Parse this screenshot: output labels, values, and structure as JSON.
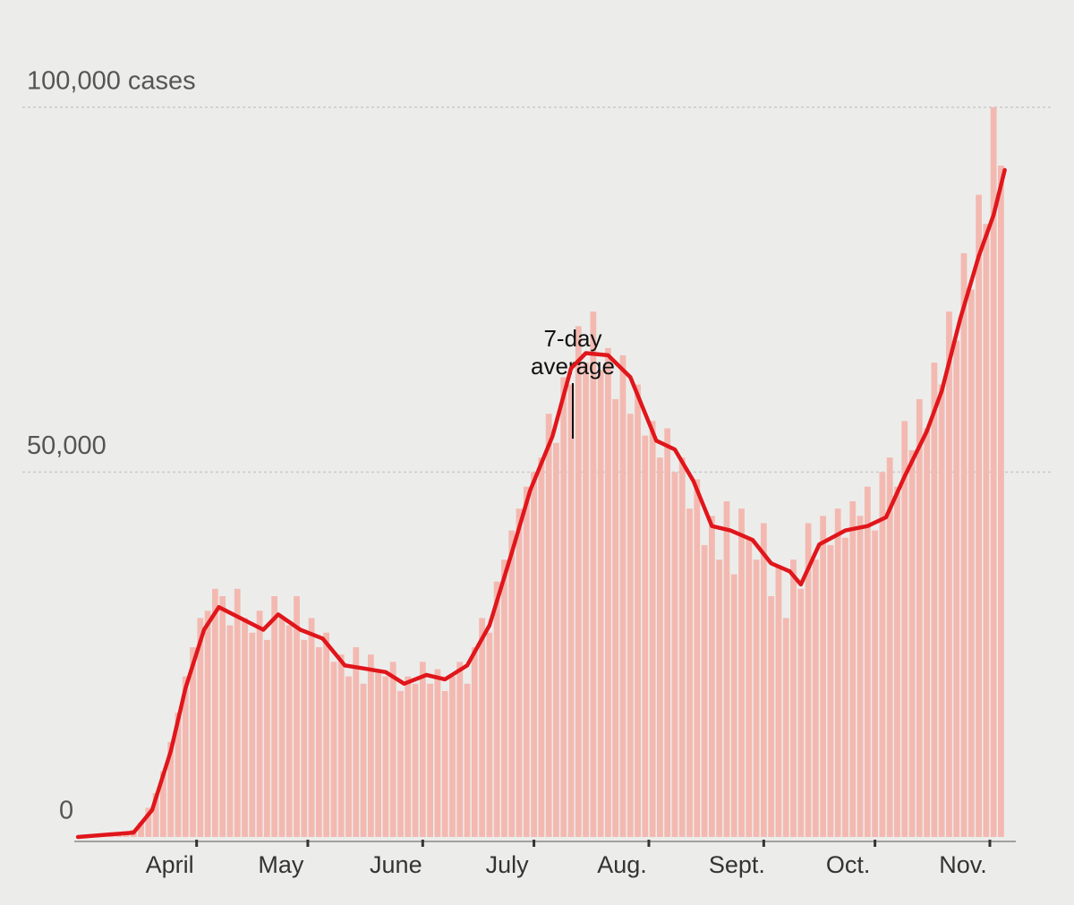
{
  "chart_data": {
    "type": "bar-line",
    "annotation": [
      "7-day",
      "average"
    ],
    "xlim": [
      58,
      312
    ],
    "xticks": [
      {
        "value": 91,
        "label": "April"
      },
      {
        "value": 121,
        "label": "May"
      },
      {
        "value": 152,
        "label": "June"
      },
      {
        "value": 182,
        "label": "July"
      },
      {
        "value": 213,
        "label": "Aug."
      },
      {
        "value": 244,
        "label": "Sept."
      },
      {
        "value": 274,
        "label": "Oct."
      },
      {
        "value": 305,
        "label": "Nov."
      }
    ],
    "ylim": [
      0,
      105000
    ],
    "yticks": [
      0,
      {
        "value": 50000,
        "label": "50,000"
      },
      {
        "value": 100000,
        "label": "100,000 cases"
      }
    ],
    "grid": true,
    "bars": {
      "color": "#f3b9b1",
      "x": [
        62,
        64,
        66,
        68,
        70,
        72,
        74,
        76,
        78,
        80,
        82,
        84,
        86,
        88,
        90,
        92,
        94,
        96,
        98,
        100,
        102,
        104,
        106,
        108,
        110,
        112,
        114,
        116,
        118,
        120,
        122,
        124,
        126,
        128,
        130,
        132,
        134,
        136,
        138,
        140,
        142,
        144,
        146,
        148,
        150,
        152,
        154,
        156,
        158,
        160,
        162,
        164,
        166,
        168,
        170,
        172,
        174,
        176,
        178,
        180,
        182,
        184,
        186,
        188,
        190,
        192,
        194,
        196,
        198,
        200,
        202,
        204,
        206,
        208,
        210,
        212,
        214,
        216,
        218,
        220,
        222,
        224,
        226,
        228,
        230,
        232,
        234,
        236,
        238,
        240,
        242,
        244,
        246,
        248,
        250,
        252,
        254,
        256,
        258,
        260,
        262,
        264,
        266,
        268,
        270,
        272,
        274,
        276,
        278,
        280,
        282,
        284,
        286,
        288,
        290,
        292,
        294,
        296,
        298,
        300,
        302,
        304,
        306,
        308
      ],
      "values": [
        0,
        0,
        100,
        200,
        300,
        500,
        1000,
        2000,
        4000,
        6000,
        9000,
        13000,
        17000,
        22000,
        26000,
        30000,
        31000,
        34000,
        33000,
        29000,
        34000,
        30000,
        28000,
        31000,
        27000,
        33000,
        30000,
        29000,
        33000,
        27000,
        30000,
        26000,
        28000,
        24000,
        25000,
        22000,
        26000,
        21000,
        25000,
        23000,
        22000,
        24000,
        20000,
        22000,
        21000,
        24000,
        21000,
        23000,
        20000,
        22000,
        24000,
        21000,
        26000,
        30000,
        28000,
        35000,
        38000,
        42000,
        45000,
        48000,
        50000,
        52000,
        58000,
        54000,
        63000,
        62000,
        70000,
        65000,
        72000,
        64000,
        67000,
        60000,
        66000,
        58000,
        62000,
        55000,
        57000,
        52000,
        56000,
        50000,
        52000,
        45000,
        49000,
        40000,
        44000,
        38000,
        46000,
        36000,
        45000,
        41000,
        38000,
        43000,
        33000,
        37000,
        30000,
        38000,
        34000,
        43000,
        38000,
        44000,
        40000,
        45000,
        41000,
        46000,
        44000,
        48000,
        42000,
        50000,
        52000,
        48000,
        57000,
        53000,
        60000,
        56000,
        65000,
        62000,
        72000,
        68000,
        80000,
        75000,
        88000,
        84000,
        100000,
        92000
      ]
    },
    "series": [
      {
        "name": "7-day average",
        "color": "#e0161b",
        "x": [
          59,
          74,
          79,
          84,
          88,
          93,
          97,
          102,
          109,
          113,
          119,
          125,
          131,
          136,
          142,
          147,
          153,
          158,
          164,
          170,
          176,
          181,
          187,
          192,
          196,
          202,
          208,
          215,
          220,
          225,
          230,
          235,
          241,
          246,
          251,
          254,
          259,
          266,
          272,
          277,
          282,
          288,
          292,
          297,
          302,
          306,
          309
        ],
        "values": [
          0,
          600,
          3700,
          11700,
          20400,
          28400,
          31500,
          30200,
          28400,
          30500,
          28400,
          27200,
          23500,
          23100,
          22600,
          21000,
          22200,
          21600,
          23500,
          29000,
          38900,
          47500,
          54900,
          64200,
          66300,
          66000,
          63000,
          54300,
          53100,
          48800,
          42600,
          42000,
          40700,
          37500,
          36400,
          34600,
          40100,
          42000,
          42600,
          43800,
          49400,
          55600,
          61100,
          71000,
          79600,
          85200,
          91400
        ]
      }
    ]
  }
}
